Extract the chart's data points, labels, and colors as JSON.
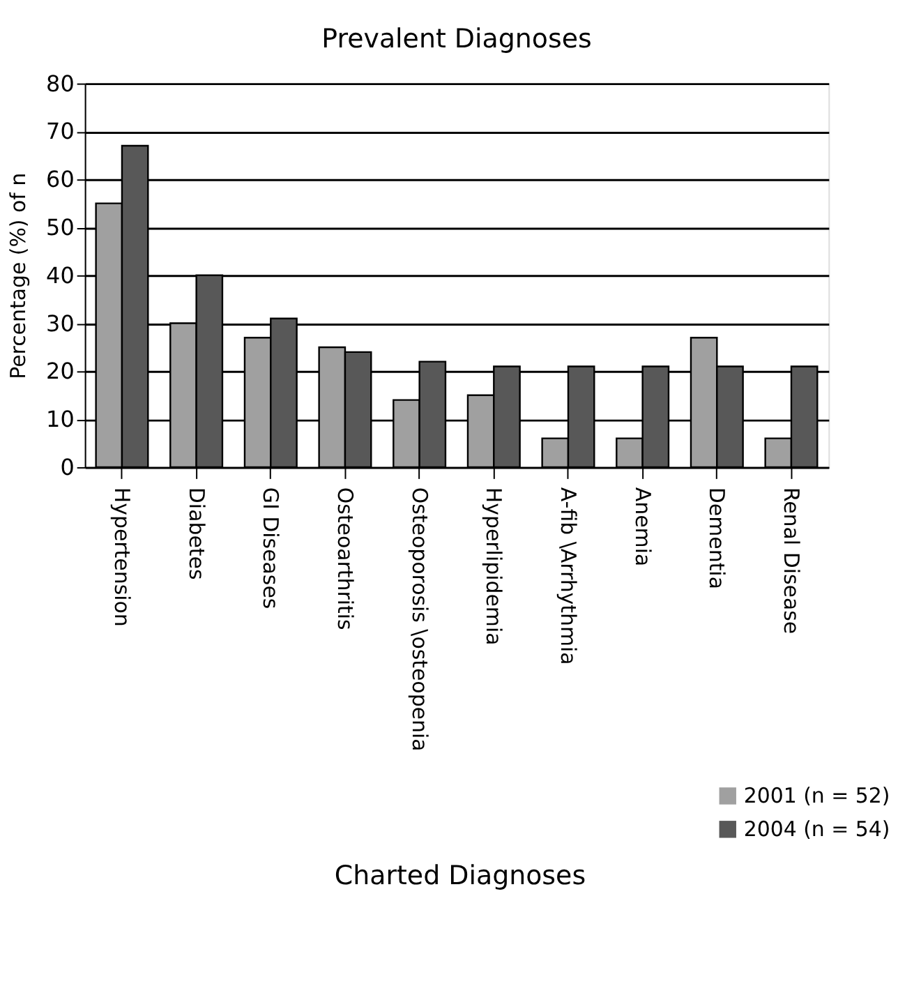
{
  "chart_data": {
    "type": "bar",
    "title": "Prevalent Diagnoses",
    "ylabel": "Percentage (%) of n",
    "categories": [
      "Hypertension",
      "Diabetes",
      "GI Diseases",
      "Osteoarthritis",
      "Osteoporosis \\osteopenia",
      "Hyperlipidemia",
      "A-fib \\Arrhythmia",
      "Anemia",
      "Dementia",
      "Renal Disease"
    ],
    "series": [
      {
        "name": "2001 (n = 52)",
        "color": "#a0a0a0",
        "values": [
          55,
          30,
          27,
          25,
          14,
          15,
          6,
          6,
          27,
          6
        ]
      },
      {
        "name": "2004 (n = 54)",
        "color": "#585858",
        "values": [
          67,
          40,
          31,
          24,
          22,
          21,
          21,
          21,
          21,
          21
        ]
      }
    ],
    "ylim": [
      0,
      80
    ],
    "yticks": [
      0,
      10,
      20,
      30,
      40,
      50,
      60,
      70,
      80
    ],
    "grid": "y",
    "legend": "bottom right",
    "annotations": [
      "Charted Diagnoses"
    ]
  }
}
